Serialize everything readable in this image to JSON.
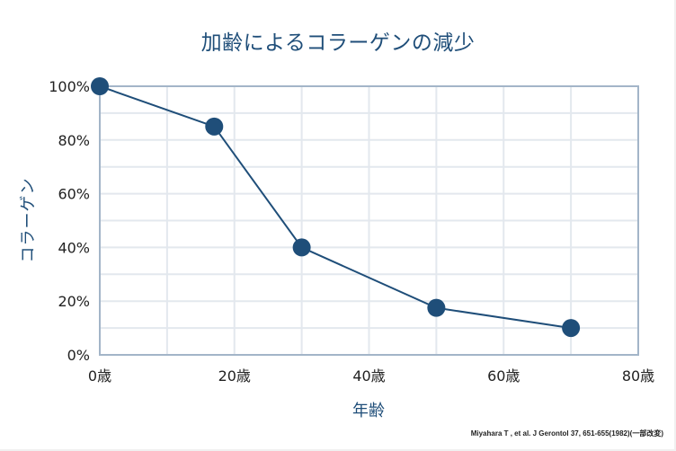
{
  "chart_data": {
    "type": "line",
    "title": "加齢によるコラーゲンの減少",
    "xlabel": "年齢",
    "ylabel": "コラーゲン",
    "x": [
      0,
      17,
      30,
      50,
      70
    ],
    "series": [
      {
        "name": "コラーゲン",
        "values": [
          100,
          85,
          40,
          17.5,
          10
        ]
      }
    ],
    "xlim": [
      0,
      80
    ],
    "ylim": [
      0,
      100
    ],
    "x_ticks": [
      "0歳",
      "20歳",
      "40歳",
      "60歳",
      "80歳"
    ],
    "y_ticks": [
      "0%",
      "20%",
      "40%",
      "60%",
      "80%",
      "100%"
    ],
    "grid": true,
    "legend": null,
    "source": "Miyahara T , et al. J Gerontol 37, 651-655(1982)(一部改変)",
    "colors": {
      "line": "#1f4e79",
      "marker": "#1f4e79",
      "axis": "#a3b5c8",
      "grid": "#e3e8ee",
      "title": "#1f4e79"
    }
  }
}
